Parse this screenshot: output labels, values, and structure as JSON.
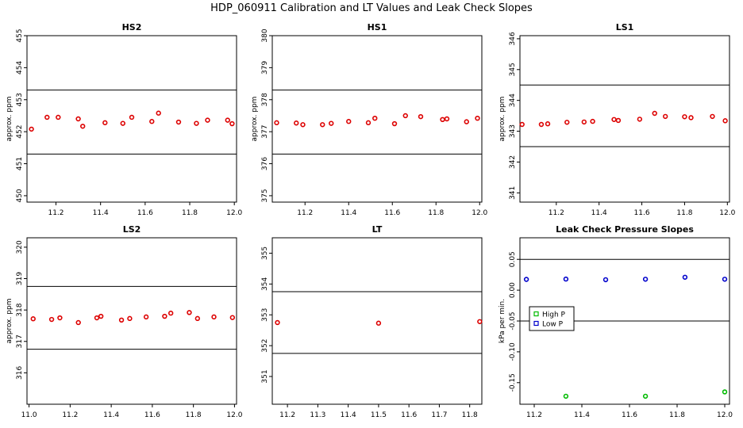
{
  "title": "HDP_060911  Calibration and LT Values and Leak Check Slopes",
  "chart_data": [
    {
      "type": "scatter",
      "title": "HS2",
      "ylabel": "approx. ppm",
      "xlabel": "",
      "xlim": [
        11.07,
        12.01
      ],
      "ylim": [
        449.8,
        455.0
      ],
      "xticks": [
        "11.2",
        "11.4",
        "11.6",
        "11.8",
        "12.0"
      ],
      "yticks": [
        "450",
        "451",
        "452",
        "453",
        "454",
        "455"
      ],
      "hlines": [
        451.3,
        453.3
      ],
      "series": [
        {
          "color": "#dd0000",
          "shape": "circle",
          "x": [
            11.09,
            11.16,
            11.21,
            11.3,
            11.32,
            11.42,
            11.5,
            11.54,
            11.63,
            11.66,
            11.75,
            11.83,
            11.88,
            11.97,
            11.99
          ],
          "y": [
            452.08,
            452.45,
            452.45,
            452.4,
            452.17,
            452.28,
            452.26,
            452.45,
            452.32,
            452.58,
            452.3,
            452.26,
            452.36,
            452.36,
            452.25
          ]
        }
      ]
    },
    {
      "type": "scatter",
      "title": "HS1",
      "ylabel": "approx. ppm",
      "xlabel": "",
      "xlim": [
        11.05,
        12.01
      ],
      "ylim": [
        374.8,
        380.0
      ],
      "xticks": [
        "11.2",
        "11.4",
        "11.6",
        "11.8",
        "12.0"
      ],
      "yticks": [
        "375",
        "376",
        "377",
        "378",
        "379",
        "380"
      ],
      "hlines": [
        376.3,
        378.3
      ],
      "series": [
        {
          "color": "#dd0000",
          "shape": "circle",
          "x": [
            11.07,
            11.16,
            11.19,
            11.28,
            11.32,
            11.4,
            11.49,
            11.52,
            11.61,
            11.66,
            11.73,
            11.83,
            11.85,
            11.94,
            11.99
          ],
          "y": [
            377.28,
            377.27,
            377.22,
            377.22,
            377.26,
            377.32,
            377.28,
            377.42,
            377.25,
            377.5,
            377.47,
            377.38,
            377.4,
            377.31,
            377.42
          ]
        }
      ]
    },
    {
      "type": "scatter",
      "title": "LS1",
      "ylabel": "approx. ppm",
      "xlabel": "",
      "xlim": [
        11.03,
        12.01
      ],
      "ylim": [
        340.7,
        346.1
      ],
      "xticks": [
        "11.2",
        "11.4",
        "11.6",
        "11.8",
        "12.0"
      ],
      "yticks": [
        "341",
        "342",
        "343",
        "344",
        "345",
        "346"
      ],
      "hlines": [
        342.5,
        344.5
      ],
      "series": [
        {
          "color": "#dd0000",
          "shape": "circle",
          "x": [
            11.04,
            11.13,
            11.16,
            11.25,
            11.33,
            11.37,
            11.47,
            11.49,
            11.59,
            11.66,
            11.71,
            11.8,
            11.83,
            11.93,
            11.99
          ],
          "y": [
            343.22,
            343.22,
            343.24,
            343.29,
            343.3,
            343.32,
            343.38,
            343.35,
            343.39,
            343.58,
            343.48,
            343.47,
            343.44,
            343.48,
            343.34
          ]
        }
      ]
    },
    {
      "type": "scatter",
      "title": "LS2",
      "ylabel": "approx. ppm",
      "xlabel": "",
      "xlim": [
        10.99,
        12.01
      ],
      "ylim": [
        315.0,
        320.3
      ],
      "xticks": [
        "11.0",
        "11.2",
        "11.4",
        "11.6",
        "11.8",
        "12.0"
      ],
      "yticks": [
        "316",
        "317",
        "318",
        "319",
        "320"
      ],
      "hlines": [
        316.75,
        318.75
      ],
      "series": [
        {
          "color": "#dd0000",
          "shape": "circle",
          "x": [
            11.02,
            11.11,
            11.15,
            11.24,
            11.33,
            11.35,
            11.45,
            11.49,
            11.57,
            11.66,
            11.69,
            11.78,
            11.82,
            11.9,
            11.99
          ],
          "y": [
            317.72,
            317.7,
            317.75,
            317.6,
            317.75,
            317.8,
            317.68,
            317.73,
            317.78,
            317.8,
            317.9,
            317.92,
            317.73,
            317.78,
            317.76
          ]
        }
      ]
    },
    {
      "type": "scatter",
      "title": "LT",
      "ylabel": "",
      "xlabel": "",
      "xlim": [
        11.15,
        11.84
      ],
      "ylim": [
        350.1,
        355.5
      ],
      "xticks": [
        "11.2",
        "11.3",
        "11.4",
        "11.5",
        "11.6",
        "11.7",
        "11.8"
      ],
      "yticks": [
        "351",
        "352",
        "353",
        "354",
        "355"
      ],
      "hlines": [
        351.75,
        353.75
      ],
      "series": [
        {
          "color": "#dd0000",
          "shape": "circle",
          "x": [
            11.167,
            11.5,
            11.833
          ],
          "y": [
            352.75,
            352.73,
            352.78
          ]
        }
      ]
    },
    {
      "type": "scatter",
      "title": "Leak Check Pressure Slopes",
      "ylabel": "kPa per min.",
      "xlabel": "",
      "xlim": [
        11.14,
        12.02
      ],
      "ylim": [
        -0.185,
        0.085
      ],
      "xticks": [
        "11.2",
        "11.4",
        "11.6",
        "11.8",
        "12.0"
      ],
      "yticks": [
        "-0.15",
        "-0.10",
        "-0.05",
        "0.00",
        "0.05"
      ],
      "hlines": [
        0.05,
        -0.05
      ],
      "legend": {
        "placement": "center-left"
      },
      "series": [
        {
          "name": "High P",
          "color": "#00bb00",
          "shape": "circle",
          "x": [
            11.333,
            11.667,
            12.0
          ],
          "y": [
            -0.172,
            -0.172,
            -0.165
          ]
        },
        {
          "name": "Low P",
          "color": "#0000cc",
          "shape": "circle",
          "x": [
            11.167,
            11.333,
            11.5,
            11.667,
            11.833,
            12.0
          ],
          "y": [
            0.0175,
            0.018,
            0.017,
            0.0178,
            0.021,
            0.0178
          ]
        }
      ]
    }
  ]
}
